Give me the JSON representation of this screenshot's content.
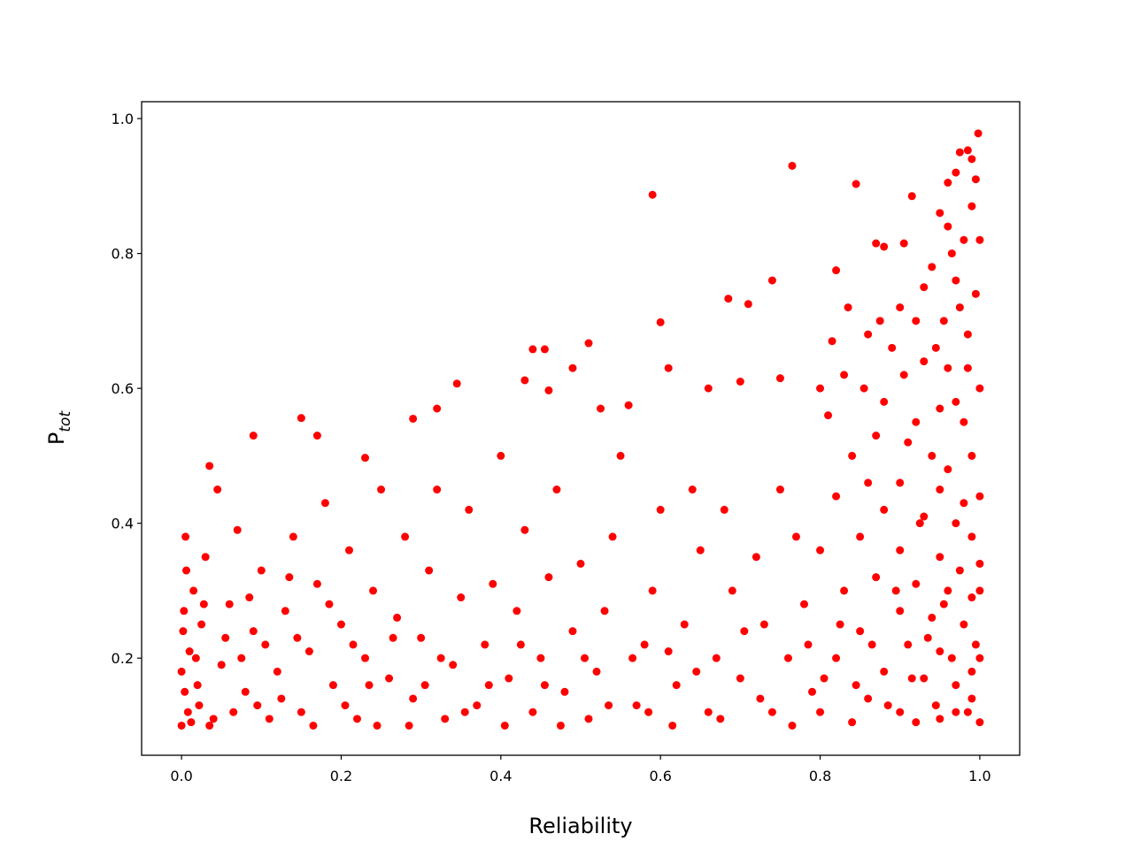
{
  "chart_data": {
    "type": "scatter",
    "xlabel": "Reliability",
    "ylabel": {
      "main": "P",
      "sub": "tot"
    },
    "xlim": [
      -0.05,
      1.05
    ],
    "ylim": [
      0.056,
      1.025
    ],
    "xticks": [
      {
        "value": 0,
        "label": "0.0"
      },
      0.2,
      0.4,
      0.6,
      0.8,
      {
        "value": 1,
        "label": "1.0"
      }
    ],
    "yticks": [
      0.2,
      0.4,
      0.6,
      0.8,
      {
        "value": 1,
        "label": "1.0"
      }
    ],
    "grid": false,
    "series": [
      {
        "color": "#ff0000",
        "x": [
          0.59,
          0.765,
          0.845,
          0.915,
          0.998,
          0.985,
          0.6,
          0.51,
          0.44,
          0.455,
          0.685,
          0.74,
          0.71,
          0.15,
          0.09,
          0.035,
          0.17,
          0.23,
          0.29,
          0.32,
          0.345,
          0.43,
          0.46,
          0.49,
          0.525,
          0.56,
          0.61,
          0.66,
          0.7,
          0.75,
          0.82,
          0.8,
          0.835,
          0.86,
          0.87,
          0.88,
          0.905,
          0.95,
          0.96,
          0.97,
          0.975,
          0.99,
          0.995,
          0.96,
          0.94,
          0.99,
          0.98,
          1.0,
          0.93,
          0.97,
          0.995,
          0.92,
          0.955,
          0.985,
          0.89,
          0.905,
          0.93,
          0.96,
          1.0,
          0.88,
          0.95,
          0.98,
          0.87,
          0.91,
          0.94,
          0.99,
          0.84,
          0.86,
          0.9,
          0.95,
          1.0,
          0.82,
          0.88,
          0.93,
          0.97,
          0.99,
          0.85,
          0.9,
          0.95,
          1.0,
          0.8,
          0.87,
          0.92,
          0.96,
          0.99,
          0.83,
          0.9,
          0.94,
          0.98,
          0.85,
          0.91,
          0.95,
          1.0,
          0.82,
          0.88,
          0.93,
          0.97,
          0.99,
          0.86,
          0.9,
          0.95,
          1.0,
          0.8,
          0.84,
          0.92,
          0.97,
          0.78,
          0.77,
          0.76,
          0.79,
          0.75,
          0.72,
          0.73,
          0.7,
          0.74,
          0.68,
          0.69,
          0.67,
          0.66,
          0.65,
          0.63,
          0.62,
          0.64,
          0.6,
          0.59,
          0.58,
          0.57,
          0.61,
          0.55,
          0.54,
          0.53,
          0.52,
          0.51,
          0.5,
          0.49,
          0.48,
          0.47,
          0.46,
          0.45,
          0.44,
          0.43,
          0.42,
          0.41,
          0.4,
          0.39,
          0.38,
          0.37,
          0.36,
          0.35,
          0.34,
          0.33,
          0.32,
          0.31,
          0.3,
          0.29,
          0.28,
          0.27,
          0.26,
          0.25,
          0.24,
          0.23,
          0.22,
          0.21,
          0.2,
          0.19,
          0.18,
          0.17,
          0.16,
          0.15,
          0.14,
          0.13,
          0.12,
          0.11,
          0.1,
          0.09,
          0.08,
          0.07,
          0.06,
          0.05,
          0.045,
          0.04,
          0.03,
          0.025,
          0.02,
          0.015,
          0.01,
          0.008,
          0.005,
          0.003,
          0.0,
          0.0,
          0.002,
          0.004,
          0.006,
          0.012,
          0.018,
          0.022,
          0.028,
          0.035,
          0.055,
          0.065,
          0.075,
          0.085,
          0.095,
          0.105,
          0.125,
          0.135,
          0.145,
          0.165,
          0.185,
          0.205,
          0.215,
          0.235,
          0.245,
          0.265,
          0.285,
          0.305,
          0.325,
          0.355,
          0.385,
          0.405,
          0.425,
          0.455,
          0.475,
          0.505,
          0.535,
          0.565,
          0.585,
          0.615,
          0.645,
          0.675,
          0.705,
          0.725,
          0.765,
          0.785,
          0.805,
          0.825,
          0.845,
          0.865,
          0.885,
          0.895,
          0.915,
          0.925,
          0.935,
          0.945,
          0.955,
          0.965,
          0.975,
          0.985,
          0.995,
          1.0,
          0.99,
          0.98,
          0.97,
          0.96,
          0.985,
          0.975,
          0.965,
          0.945,
          0.92,
          0.9,
          0.875,
          0.855,
          0.815,
          0.81,
          0.83
        ],
        "values": [
          0.887,
          0.93,
          0.903,
          0.885,
          0.978,
          0.953,
          0.698,
          0.667,
          0.658,
          0.658,
          0.733,
          0.76,
          0.725,
          0.556,
          0.53,
          0.485,
          0.53,
          0.497,
          0.555,
          0.57,
          0.607,
          0.612,
          0.597,
          0.63,
          0.57,
          0.575,
          0.63,
          0.6,
          0.61,
          0.615,
          0.775,
          0.6,
          0.72,
          0.68,
          0.815,
          0.81,
          0.815,
          0.86,
          0.905,
          0.92,
          0.95,
          0.94,
          0.91,
          0.84,
          0.78,
          0.87,
          0.82,
          0.82,
          0.75,
          0.76,
          0.74,
          0.7,
          0.7,
          0.68,
          0.66,
          0.62,
          0.64,
          0.63,
          0.6,
          0.58,
          0.57,
          0.55,
          0.53,
          0.52,
          0.5,
          0.5,
          0.5,
          0.46,
          0.46,
          0.45,
          0.44,
          0.44,
          0.42,
          0.41,
          0.4,
          0.38,
          0.38,
          0.36,
          0.35,
          0.34,
          0.36,
          0.32,
          0.31,
          0.3,
          0.29,
          0.3,
          0.27,
          0.26,
          0.25,
          0.24,
          0.22,
          0.21,
          0.2,
          0.2,
          0.18,
          0.17,
          0.16,
          0.14,
          0.14,
          0.12,
          0.11,
          0.105,
          0.12,
          0.105,
          0.105,
          0.12,
          0.28,
          0.38,
          0.2,
          0.15,
          0.45,
          0.35,
          0.25,
          0.17,
          0.12,
          0.42,
          0.3,
          0.2,
          0.12,
          0.36,
          0.25,
          0.16,
          0.45,
          0.42,
          0.3,
          0.22,
          0.13,
          0.21,
          0.5,
          0.38,
          0.27,
          0.18,
          0.11,
          0.34,
          0.24,
          0.15,
          0.45,
          0.32,
          0.2,
          0.12,
          0.39,
          0.27,
          0.17,
          0.5,
          0.31,
          0.22,
          0.13,
          0.42,
          0.29,
          0.19,
          0.11,
          0.45,
          0.33,
          0.23,
          0.14,
          0.38,
          0.26,
          0.17,
          0.45,
          0.3,
          0.2,
          0.11,
          0.36,
          0.25,
          0.16,
          0.43,
          0.31,
          0.21,
          0.12,
          0.38,
          0.27,
          0.18,
          0.11,
          0.33,
          0.24,
          0.15,
          0.39,
          0.28,
          0.19,
          0.45,
          0.11,
          0.35,
          0.25,
          0.16,
          0.3,
          0.21,
          0.12,
          0.38,
          0.27,
          0.18,
          0.1,
          0.24,
          0.15,
          0.33,
          0.105,
          0.2,
          0.13,
          0.28,
          0.1,
          0.23,
          0.12,
          0.2,
          0.29,
          0.13,
          0.22,
          0.14,
          0.32,
          0.23,
          0.1,
          0.28,
          0.13,
          0.22,
          0.16,
          0.1,
          0.23,
          0.1,
          0.16,
          0.2,
          0.12,
          0.16,
          0.1,
          0.22,
          0.16,
          0.1,
          0.2,
          0.13,
          0.2,
          0.12,
          0.1,
          0.18,
          0.11,
          0.24,
          0.14,
          0.1,
          0.22,
          0.17,
          0.25,
          0.16,
          0.22,
          0.13,
          0.3,
          0.17,
          0.4,
          0.23,
          0.13,
          0.28,
          0.2,
          0.33,
          0.12,
          0.22,
          0.3,
          0.18,
          0.43,
          0.58,
          0.48,
          0.63,
          0.72,
          0.8,
          0.66,
          0.55,
          0.72,
          0.7,
          0.6,
          0.67,
          0.56,
          0.62
        ]
      }
    ]
  }
}
